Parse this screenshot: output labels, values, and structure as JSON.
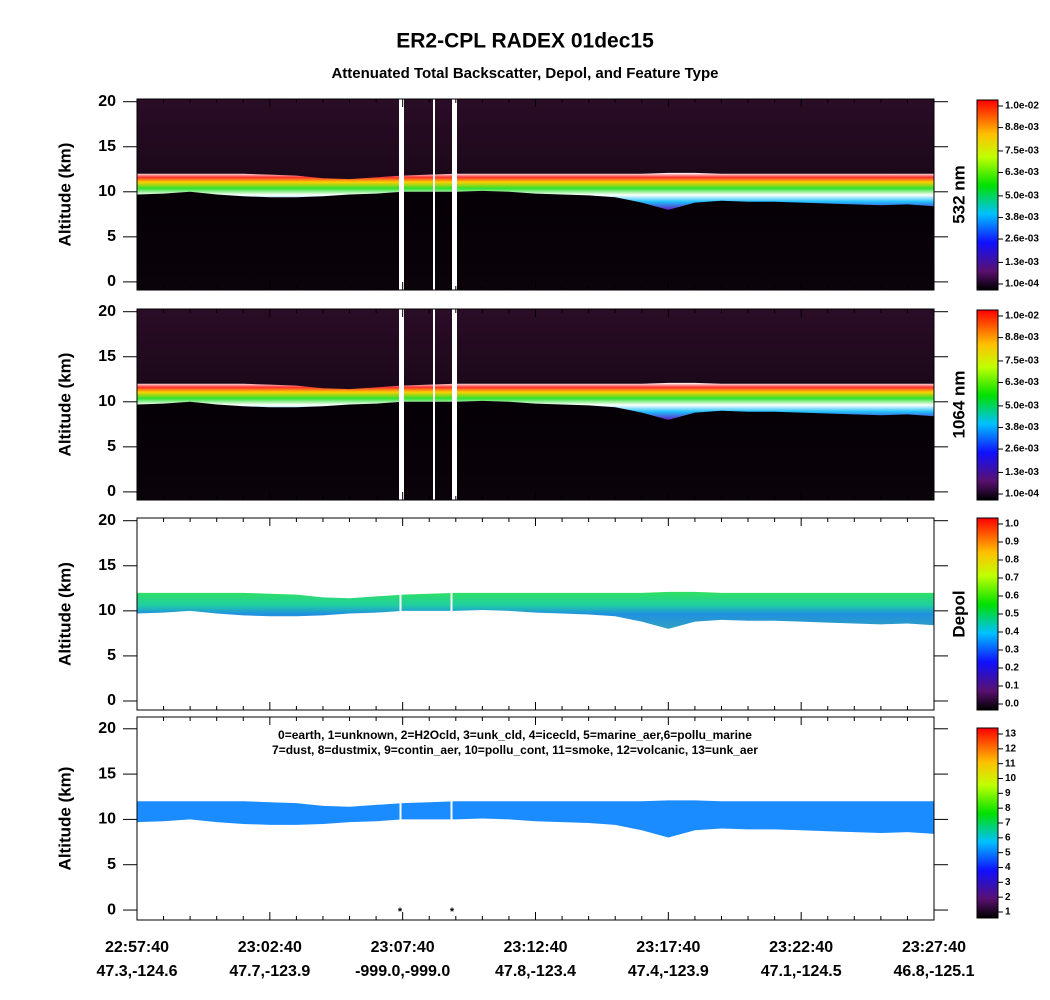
{
  "title": "ER2-CPL RADEX 01dec15",
  "subtitle": "Attenuated Total Backscatter, Depol, and Feature Type",
  "chart_data": [
    {
      "type": "curtain",
      "ylabel": "Altitude (km)",
      "side_label": "532 nm",
      "ylim": [
        -0.9,
        20.3
      ],
      "yticks": [
        0,
        5,
        10,
        15,
        20
      ],
      "layer_top": [
        12,
        12,
        12,
        12,
        12,
        11.9,
        11.8,
        11.5,
        11.4,
        11.6,
        11.8,
        11.9,
        12,
        12,
        12,
        12,
        12,
        12,
        12,
        12,
        12.1,
        12.1,
        12,
        12,
        12,
        12,
        12,
        12,
        12,
        12,
        12
      ],
      "layer_base": [
        9.7,
        9.8,
        10,
        9.7,
        9.5,
        9.4,
        9.4,
        9.5,
        9.7,
        9.8,
        10,
        10,
        10,
        10.1,
        10,
        9.8,
        9.7,
        9.6,
        9.4,
        8.8,
        8,
        8.8,
        9,
        8.9,
        8.9,
        8.8,
        8.7,
        8.6,
        8.5,
        8.6,
        8.4
      ],
      "clim": [
        0.0001,
        0.01
      ],
      "cticks": [
        {
          "value": 0.0001,
          "label": "1.0e-04"
        },
        {
          "value": 0.0013,
          "label": "1.3e-03"
        },
        {
          "value": 0.0026,
          "label": "2.6e-03"
        },
        {
          "value": 0.0038,
          "label": "3.8e-03"
        },
        {
          "value": 0.005,
          "label": "5.0e-03"
        },
        {
          "value": 0.0063,
          "label": "6.3e-03"
        },
        {
          "value": 0.0075,
          "label": "7.5e-03"
        },
        {
          "value": 0.0088,
          "label": "8.8e-03"
        },
        {
          "value": 0.01,
          "label": "1.0e-02"
        }
      ]
    },
    {
      "type": "curtain",
      "ylabel": "Altitude (km)",
      "side_label": "1064 nm",
      "ylim": [
        -0.9,
        20.3
      ],
      "yticks": [
        0,
        5,
        10,
        15,
        20
      ],
      "layer_top": [
        12,
        12,
        12,
        12,
        12,
        11.9,
        11.8,
        11.5,
        11.4,
        11.6,
        11.8,
        11.9,
        12,
        12,
        12,
        12,
        12,
        12,
        12,
        12,
        12.1,
        12.1,
        12,
        12,
        12,
        12,
        12,
        12,
        12,
        12,
        12
      ],
      "layer_base": [
        9.7,
        9.8,
        10,
        9.7,
        9.5,
        9.4,
        9.4,
        9.5,
        9.7,
        9.8,
        10,
        10,
        10,
        10.1,
        10,
        9.8,
        9.7,
        9.6,
        9.4,
        8.8,
        8,
        8.8,
        9,
        8.9,
        8.9,
        8.8,
        8.7,
        8.6,
        8.5,
        8.6,
        8.4
      ],
      "clim": [
        0.0001,
        0.01
      ],
      "cticks": [
        {
          "value": 0.0001,
          "label": "1.0e-04"
        },
        {
          "value": 0.0013,
          "label": "1.3e-03"
        },
        {
          "value": 0.0026,
          "label": "2.6e-03"
        },
        {
          "value": 0.0038,
          "label": "3.8e-03"
        },
        {
          "value": 0.005,
          "label": "5.0e-03"
        },
        {
          "value": 0.0063,
          "label": "6.3e-03"
        },
        {
          "value": 0.0075,
          "label": "7.5e-03"
        },
        {
          "value": 0.0088,
          "label": "8.8e-03"
        },
        {
          "value": 0.01,
          "label": "1.0e-02"
        }
      ]
    },
    {
      "type": "depol",
      "ylabel": "Altitude (km)",
      "side_label": "Depol",
      "ylim": [
        -1.0,
        20.3
      ],
      "yticks": [
        0,
        5,
        10,
        15,
        20
      ],
      "layer_top": [
        12,
        12,
        12,
        12,
        12,
        11.9,
        11.8,
        11.5,
        11.4,
        11.6,
        11.8,
        11.9,
        12,
        12,
        12,
        12,
        12,
        12,
        12,
        12,
        12.1,
        12.1,
        12,
        12,
        12,
        12,
        12,
        12,
        12,
        12,
        12
      ],
      "layer_base": [
        9.7,
        9.8,
        10,
        9.7,
        9.5,
        9.4,
        9.4,
        9.5,
        9.7,
        9.8,
        10,
        10,
        10,
        10.1,
        10,
        9.8,
        9.7,
        9.6,
        9.4,
        8.8,
        8,
        8.8,
        9,
        8.9,
        8.9,
        8.8,
        8.7,
        8.6,
        8.5,
        8.6,
        8.4
      ],
      "clim": [
        0,
        1
      ],
      "cticks": [
        {
          "value": 0,
          "label": "0.0"
        },
        0.1,
        0.2,
        0.3,
        0.4,
        0.5,
        0.6,
        0.7,
        0.8,
        0.9,
        {
          "value": 1,
          "label": "1.0"
        }
      ]
    },
    {
      "type": "feature",
      "ylabel": "Altitude (km)",
      "ylim": [
        -1.1,
        21.3
      ],
      "yticks": [
        0,
        5,
        10,
        15,
        20
      ],
      "annotations": [
        "0=earth, 1=unknown, 2=H2Ocld, 3=unk_cld, 4=icecld, 5=marine_aer,6=pollu_marine",
        "7=dust, 8=dustmix, 9=contin_aer, 10=pollu_cont, 11=smoke, 12=volcanic, 13=unk_aer"
      ],
      "gap_markers": [
        "*",
        "*"
      ],
      "layer_top": [
        12,
        12,
        12,
        12,
        12,
        11.9,
        11.8,
        11.5,
        11.4,
        11.6,
        11.8,
        11.9,
        12,
        12,
        12,
        12,
        12,
        12,
        12,
        12,
        12.1,
        12.1,
        12,
        12,
        12,
        12,
        12,
        12,
        12,
        12,
        12
      ],
      "layer_base": [
        9.7,
        9.8,
        10,
        9.7,
        9.5,
        9.4,
        9.4,
        9.5,
        9.7,
        9.8,
        10,
        10,
        10,
        10.1,
        10,
        9.8,
        9.7,
        9.6,
        9.4,
        8.8,
        8,
        8.8,
        9,
        8.9,
        8.9,
        8.8,
        8.7,
        8.6,
        8.5,
        8.6,
        8.4
      ],
      "color": "#1a8cff",
      "clim": [
        1,
        13
      ],
      "cticks": [
        1,
        2,
        3,
        4,
        5,
        6,
        7,
        8,
        9,
        10,
        11,
        12,
        13
      ],
      "categories": [
        "22:57:40",
        null,
        null,
        null,
        null,
        "23:02:40",
        null,
        null,
        null,
        null,
        "23:07:40",
        null,
        null,
        null,
        null,
        "23:12:40",
        null,
        null,
        null,
        null,
        "23:17:40",
        null,
        null,
        null,
        null,
        "23:22:40",
        null,
        null,
        null,
        null,
        "23:27:40"
      ],
      "category_sublabels": [
        "47.3,-124.6",
        null,
        null,
        null,
        null,
        "47.7,-123.9",
        null,
        null,
        null,
        null,
        "-999.0,-999.0",
        null,
        null,
        null,
        null,
        "47.8,-123.4",
        null,
        null,
        null,
        null,
        "47.4,-123.9",
        null,
        null,
        null,
        null,
        "47.1,-124.5",
        null,
        null,
        null,
        null,
        "46.8,-125.1"
      ]
    }
  ]
}
